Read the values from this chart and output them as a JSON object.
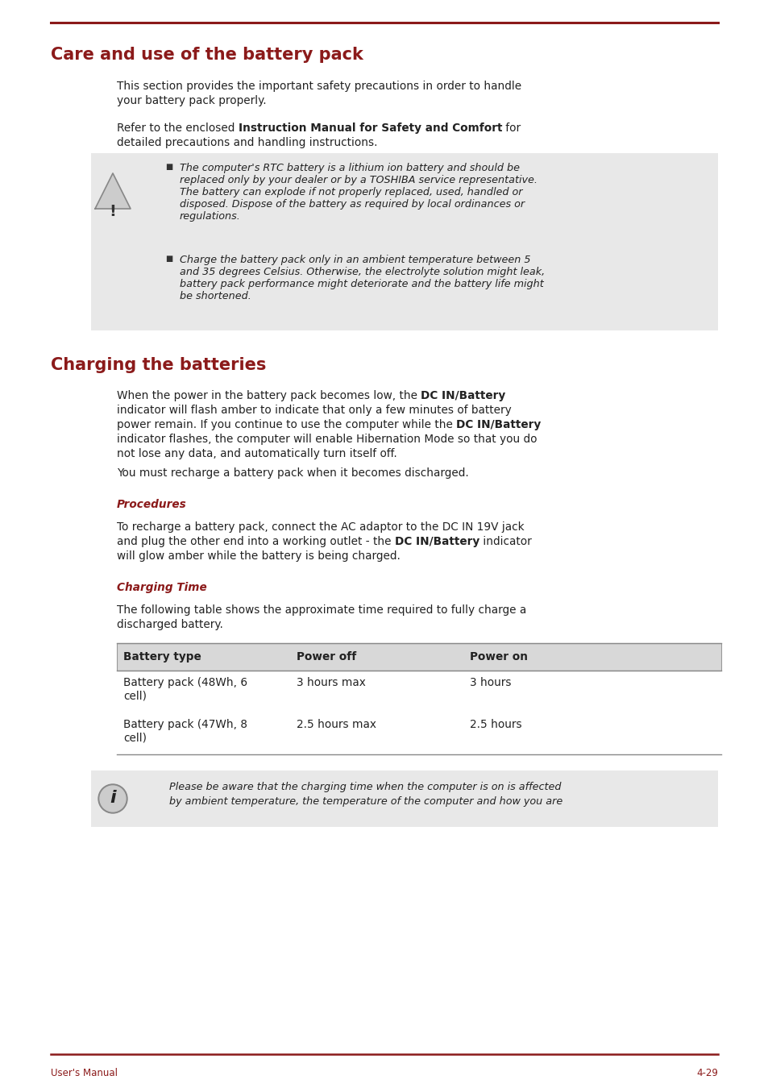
{
  "title1": "Care and use of the battery pack",
  "title2": "Charging the batteries",
  "title_color": "#8B1A1A",
  "bg_color": "#FFFFFF",
  "gray_bg": "#E8E8E8",
  "line_color": "#8B1A1A",
  "footer_color": "#8B1A1A",
  "footer_left": "User's Manual",
  "footer_right": "4-29",
  "para1_line1": "This section provides the important safety precautions in order to handle",
  "para1_line2": "your battery pack properly.",
  "para2_pre": "Refer to the enclosed ",
  "para2_bold": "Instruction Manual for Safety and Comfort",
  "para2_post": " for",
  "para2_line2": "detailed precautions and handling instructions.",
  "warn1": "The computer's RTC battery is a lithium ion battery and should be\nreplaced only by your dealer or by a TOSHIBA service representative.\nThe battery can explode if not properly replaced, used, handled or\ndisposed. Dispose of the battery as required by local ordinances or\nregulations.",
  "warn2": "Charge the battery pack only in an ambient temperature between 5\nand 35 degrees Celsius. Otherwise, the electrolyte solution might leak,\nbattery pack performance might deteriorate and the battery life might\nbe shortened.",
  "ch_l1_pre": "When the power in the battery pack becomes low, the ",
  "ch_l1_bold": "DC IN/Battery",
  "ch_l2": "indicator will flash amber to indicate that only a few minutes of battery",
  "ch_l3_pre": "power remain. If you continue to use the computer while the ",
  "ch_l3_bold": "DC IN/Battery",
  "ch_l4": "indicator flashes, the computer will enable Hibernation Mode so that you do",
  "ch_l5": "not lose any data, and automatically turn itself off.",
  "ch_para2": "You must recharge a battery pack when it becomes discharged.",
  "proc_title": "Procedures",
  "proc_l1": "To recharge a battery pack, connect the AC adaptor to the DC IN 19V jack",
  "proc_l2_pre": "and plug the other end into a working outlet - the ",
  "proc_l2_bold": "DC IN/Battery",
  "proc_l2_post": " indicator",
  "proc_l3": "will glow amber while the battery is being charged.",
  "ct_title": "Charging Time",
  "ct_intro1": "The following table shows the approximate time required to fully charge a",
  "ct_intro2": "discharged battery.",
  "tbl_h": [
    "Battery type",
    "Power off",
    "Power on"
  ],
  "tbl_r1": [
    "Battery pack (48Wh, 6\ncell)",
    "3 hours max",
    "3 hours"
  ],
  "tbl_r2": [
    "Battery pack (47Wh, 8\ncell)",
    "2.5 hours max",
    "2.5 hours"
  ],
  "note_l1": "Please be aware that the charging time when the computer is on is affected",
  "note_l2": "by ambient temperature, the temperature of the computer and how you are"
}
